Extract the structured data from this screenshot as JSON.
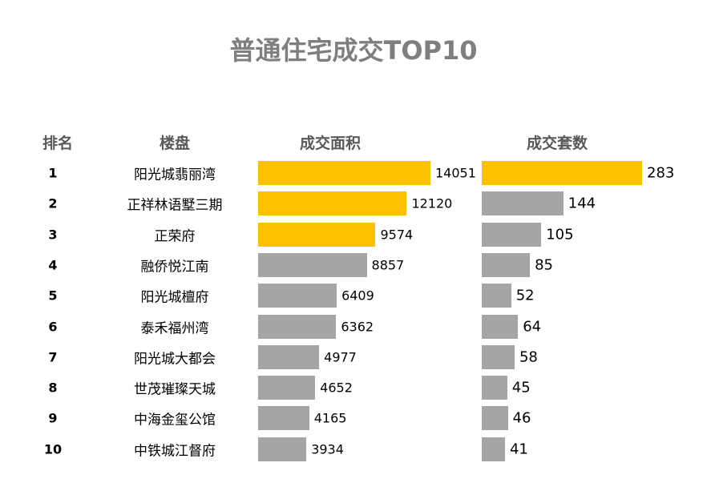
{
  "chart_data": {
    "type": "bar",
    "title": "普通住宅成交TOP10",
    "columns": [
      "排名",
      "楼盘",
      "成交面积",
      "成交套数"
    ],
    "ranks": [
      "1",
      "2",
      "3",
      "4",
      "5",
      "6",
      "7",
      "8",
      "9",
      "10"
    ],
    "categories": [
      "阳光城翡丽湾",
      "正祥林语墅三期",
      "正荣府",
      "融侨悦江南",
      "阳光城檀府",
      "泰禾福州湾",
      "阳光城大都会",
      "世茂璀璨天城",
      "中海金玺公馆",
      "中铁城江督府"
    ],
    "series": [
      {
        "name": "成交面积",
        "values": [
          14051,
          12120,
          9574,
          8857,
          6409,
          6362,
          4977,
          4652,
          4165,
          3934
        ],
        "highlight_count": 3
      },
      {
        "name": "成交套数",
        "values": [
          283,
          144,
          105,
          85,
          52,
          64,
          58,
          45,
          46,
          41
        ],
        "highlight_count": 1
      }
    ],
    "orientation": "horizontal",
    "grid": false,
    "colors": {
      "highlight": "#FFC000",
      "normal": "#A5A5A5",
      "title": "#7F7F7F"
    }
  }
}
